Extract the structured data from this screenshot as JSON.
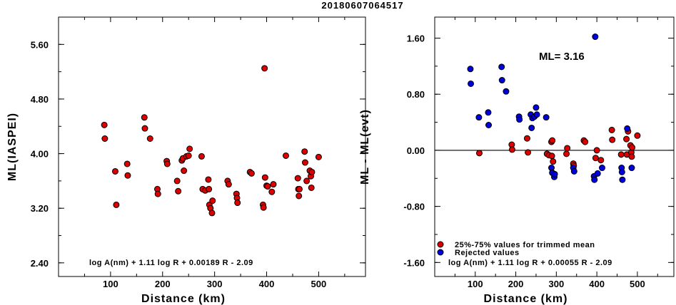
{
  "title": "20180607064517",
  "chart_data": [
    {
      "type": "scatter",
      "xlabel": "Distance (km)",
      "ylabel": "ML(IASPEI)",
      "xlim": [
        0,
        590
      ],
      "ylim": [
        2.2,
        6.0
      ],
      "xticks": [
        100,
        200,
        300,
        400,
        500
      ],
      "xtick_labels": [
        "100",
        "200",
        "300",
        "400",
        "500"
      ],
      "yticks": [
        2.4,
        3.2,
        4.0,
        4.8,
        5.6
      ],
      "ytick_labels": [
        "2.40",
        "3.20",
        "4.00",
        "4.80",
        "5.60"
      ],
      "annotation": "log A(nm) + 1.11 log R + 0.00189 R - 2.09",
      "series": [
        {
          "color": "#dd0000",
          "points": [
            [
              88,
              4.42
            ],
            [
              89,
              4.22
            ],
            [
              109,
              3.74
            ],
            [
              111,
              3.25
            ],
            [
              132,
              3.85
            ],
            [
              133,
              3.68
            ],
            [
              165,
              4.53
            ],
            [
              166,
              4.37
            ],
            [
              176,
              4.22
            ],
            [
              190,
              3.48
            ],
            [
              191,
              3.41
            ],
            [
              208,
              3.89
            ],
            [
              209,
              3.85
            ],
            [
              228,
              3.6
            ],
            [
              230,
              3.45
            ],
            [
              237,
              3.9
            ],
            [
              239,
              3.93
            ],
            [
              241,
              3.75
            ],
            [
              246,
              3.96
            ],
            [
              250,
              3.97
            ],
            [
              252,
              4.07
            ],
            [
              275,
              3.96
            ],
            [
              277,
              3.48
            ],
            [
              282,
              3.46
            ],
            [
              288,
              3.62
            ],
            [
              289,
              3.48
            ],
            [
              290,
              3.25
            ],
            [
              292,
              3.2
            ],
            [
              295,
              3.13
            ],
            [
              296,
              3.31
            ],
            [
              325,
              3.6
            ],
            [
              327,
              3.55
            ],
            [
              342,
              3.41
            ],
            [
              343,
              3.35
            ],
            [
              344,
              3.28
            ],
            [
              368,
              3.73
            ],
            [
              371,
              3.71
            ],
            [
              393,
              3.25
            ],
            [
              394,
              3.21
            ],
            [
              396,
              5.25
            ],
            [
              397,
              3.65
            ],
            [
              400,
              3.53
            ],
            [
              402,
              3.52
            ],
            [
              410,
              3.44
            ],
            [
              413,
              3.55
            ],
            [
              437,
              3.97
            ],
            [
              460,
              3.64
            ],
            [
              461,
              3.48
            ],
            [
              462,
              3.38
            ],
            [
              463,
              3.48
            ],
            [
              473,
              4.03
            ],
            [
              474,
              3.87
            ],
            [
              477,
              3.6
            ],
            [
              483,
              3.75
            ],
            [
              485,
              3.67
            ],
            [
              486,
              3.5
            ],
            [
              487,
              3.73
            ],
            [
              500,
              3.95
            ]
          ]
        }
      ]
    },
    {
      "type": "scatter",
      "xlabel": "Distance (km)",
      "ylabel": "ML - ML(evt)",
      "xlim": [
        0,
        590
      ],
      "ylim": [
        -1.8,
        1.9
      ],
      "xticks": [
        100,
        200,
        300,
        400,
        500
      ],
      "xtick_labels": [
        "100",
        "200",
        "300",
        "400",
        "500"
      ],
      "yticks": [
        -1.6,
        -0.8,
        0.0,
        0.8,
        1.6
      ],
      "ytick_labels": [
        "-1.60",
        "-0.80",
        "0.00",
        "0.80",
        "1.60"
      ],
      "zero_line": 0,
      "ml_label": "ML= 3.16",
      "annotation": "log A(nm) + 1.11 log R + 0.00055 R - 2.09",
      "legend": [
        {
          "label": "25%-75% values for trimmed mean",
          "color": "#dd0000"
        },
        {
          "label": "Rejected values",
          "color": "#0000dd"
        }
      ],
      "series": [
        {
          "name": "25%-75% values for trimmed mean",
          "color": "#dd0000",
          "points": [
            [
              110,
              -0.04
            ],
            [
              190,
              0.08
            ],
            [
              191,
              0.01
            ],
            [
              228,
              0.17
            ],
            [
              230,
              -0.03
            ],
            [
              277,
              -0.05
            ],
            [
              282,
              -0.07
            ],
            [
              288,
              0.12
            ],
            [
              289,
              -0.08
            ],
            [
              290,
              0.14
            ],
            [
              292,
              -0.16
            ],
            [
              325,
              -0.05
            ],
            [
              327,
              0.03
            ],
            [
              342,
              -0.19
            ],
            [
              343,
              -0.22
            ],
            [
              368,
              0.14
            ],
            [
              371,
              0.12
            ],
            [
              397,
              -0.11
            ],
            [
              400,
              0.0
            ],
            [
              410,
              -0.14
            ],
            [
              437,
              0.29
            ],
            [
              438,
              0.15
            ],
            [
              460,
              -0.06
            ],
            [
              473,
              0.16
            ],
            [
              474,
              -0.06
            ],
            [
              477,
              0.27
            ],
            [
              483,
              0.07
            ],
            [
              485,
              -0.03
            ],
            [
              486,
              -0.09
            ],
            [
              487,
              0.04
            ],
            [
              500,
              0.21
            ]
          ]
        },
        {
          "name": "Rejected values",
          "color": "#0000dd",
          "points": [
            [
              88,
              1.16
            ],
            [
              89,
              0.95
            ],
            [
              109,
              0.47
            ],
            [
              132,
              0.54
            ],
            [
              133,
              0.36
            ],
            [
              165,
              1.19
            ],
            [
              166,
              1.0
            ],
            [
              176,
              0.84
            ],
            [
              208,
              0.48
            ],
            [
              209,
              0.44
            ],
            [
              237,
              0.51
            ],
            [
              239,
              0.32
            ],
            [
              241,
              0.46
            ],
            [
              246,
              0.48
            ],
            [
              250,
              0.61
            ],
            [
              252,
              0.51
            ],
            [
              275,
              0.47
            ],
            [
              288,
              -0.25
            ],
            [
              290,
              -0.32
            ],
            [
              295,
              -0.38
            ],
            [
              296,
              -0.34
            ],
            [
              342,
              -0.25
            ],
            [
              344,
              -0.3
            ],
            [
              393,
              -0.37
            ],
            [
              394,
              -0.42
            ],
            [
              396,
              1.62
            ],
            [
              402,
              -0.33
            ],
            [
              413,
              -0.25
            ],
            [
              461,
              -0.25
            ],
            [
              462,
              -0.31
            ],
            [
              463,
              -0.42
            ],
            [
              475,
              0.31
            ],
            [
              486,
              -0.25
            ]
          ]
        }
      ]
    }
  ]
}
